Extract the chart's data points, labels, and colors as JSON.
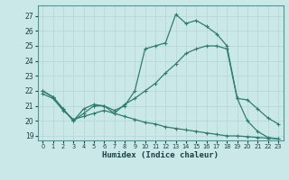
{
  "xlabel": "Humidex (Indice chaleur)",
  "bg_color": "#cbe8e8",
  "line_color": "#2e7d6e",
  "grid_color": "#b8d8d8",
  "xlim": [
    -0.5,
    23.5
  ],
  "ylim": [
    18.7,
    27.7
  ],
  "yticks": [
    19,
    20,
    21,
    22,
    23,
    24,
    25,
    26,
    27
  ],
  "xticks": [
    0,
    1,
    2,
    3,
    4,
    5,
    6,
    7,
    8,
    9,
    10,
    11,
    12,
    13,
    14,
    15,
    16,
    17,
    18,
    19,
    20,
    21,
    22,
    23
  ],
  "line1_x": [
    0,
    1,
    2,
    3,
    4,
    5,
    6,
    7,
    8,
    9,
    10,
    11,
    12,
    13,
    14,
    15,
    16,
    17,
    18,
    19,
    20,
    21,
    22,
    23
  ],
  "line1_y": [
    22.0,
    21.6,
    20.8,
    20.0,
    20.8,
    21.1,
    21.0,
    20.7,
    21.0,
    22.0,
    24.8,
    25.0,
    25.2,
    27.1,
    26.5,
    26.7,
    26.3,
    25.8,
    25.0,
    21.5,
    20.0,
    19.3,
    18.9,
    18.8
  ],
  "line2_x": [
    0,
    1,
    2,
    3,
    4,
    5,
    6,
    7,
    8,
    9,
    10,
    11,
    12,
    13,
    14,
    15,
    16,
    17,
    18,
    19,
    20,
    21,
    22,
    23
  ],
  "line2_y": [
    22.0,
    21.6,
    20.8,
    20.0,
    20.5,
    21.0,
    21.0,
    20.5,
    21.1,
    21.5,
    22.0,
    22.5,
    23.2,
    23.8,
    24.5,
    24.8,
    25.0,
    25.0,
    24.8,
    21.5,
    21.4,
    20.8,
    20.2,
    19.8
  ],
  "line3_x": [
    0,
    1,
    2,
    3,
    4,
    5,
    6,
    7,
    8,
    9,
    10,
    11,
    12,
    13,
    14,
    15,
    16,
    17,
    18,
    19,
    20,
    21,
    22,
    23
  ],
  "line3_y": [
    21.8,
    21.5,
    20.7,
    20.1,
    20.3,
    20.5,
    20.7,
    20.5,
    20.3,
    20.1,
    19.9,
    19.8,
    19.6,
    19.5,
    19.4,
    19.3,
    19.2,
    19.1,
    19.0,
    19.0,
    18.95,
    18.9,
    18.85,
    18.8
  ]
}
